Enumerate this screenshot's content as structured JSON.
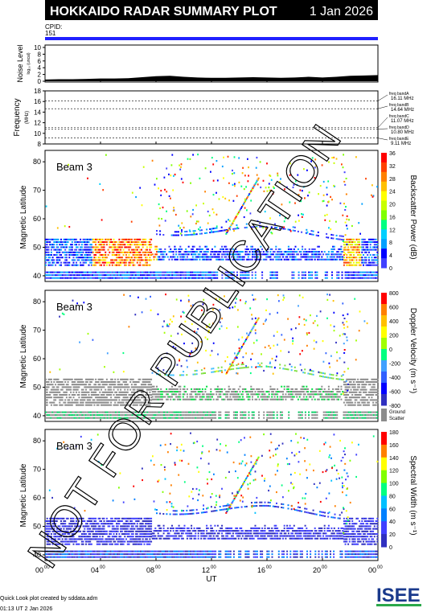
{
  "header": {
    "title": "HOKKAIDO RADAR SUMMARY PLOT",
    "date": "1 Jan 2026",
    "cpid_label": "CPID:",
    "cpid_value": "151"
  },
  "chart_data": [
    {
      "type": "area",
      "ylabel": "Noise Level",
      "ylabel_sub": "log₁₀ (uncal)",
      "yticks": [
        "10",
        "8",
        "6",
        "4",
        "2",
        "0"
      ],
      "ylim": [
        0,
        10
      ],
      "x": [
        0,
        1,
        2,
        3,
        4,
        5,
        6,
        7,
        8,
        9,
        10,
        11,
        12,
        13,
        14,
        15,
        16,
        17,
        18,
        19,
        20,
        21,
        22,
        23,
        24
      ],
      "values": [
        0.5,
        0.6,
        0.6,
        0.7,
        0.8,
        0.8,
        0.9,
        1.2,
        1.5,
        1.6,
        1.3,
        1.1,
        1.0,
        1.0,
        1.1,
        1.2,
        1.1,
        1.0,
        1.1,
        1.3,
        1.1,
        1.3,
        1.6,
        1.7,
        1.8
      ]
    },
    {
      "type": "line",
      "ylabel": "Frequency",
      "ylabel_sub": "(MHz)",
      "yticks": [
        "18",
        "16",
        "14",
        "12",
        "10",
        "8"
      ],
      "ylim": [
        8,
        18
      ],
      "bands": [
        {
          "name": "freq bandA",
          "value": "16.11 MHz",
          "mhz": 16.11
        },
        {
          "name": "freq bandB",
          "value": "14.64 MHz",
          "mhz": 14.64
        },
        {
          "name": "freq bandC",
          "value": "11.07 MHz",
          "mhz": 11.07
        },
        {
          "name": "freq bandD",
          "value": "10.80 MHz",
          "mhz": 10.8
        },
        {
          "name": "freq bandE",
          "value": "9.11 MHz",
          "mhz": 9.11
        }
      ]
    },
    {
      "type": "heatmap",
      "beam": "Beam  3",
      "ylabel": "Magnetic Latitude",
      "yticks": [
        "80",
        "70",
        "60",
        "50",
        "40"
      ],
      "ylim": [
        38,
        84
      ],
      "colorbar": {
        "title": "Backscatter Power (dB)",
        "ticks": [
          "36",
          "32",
          "28",
          "24",
          "20",
          "16",
          "12",
          "8",
          "4",
          "0"
        ]
      }
    },
    {
      "type": "heatmap",
      "beam": "Beam  3",
      "ylabel": "Magnetic Latitude",
      "yticks": [
        "80",
        "70",
        "60",
        "50",
        "40"
      ],
      "ylim": [
        38,
        84
      ],
      "colorbar": {
        "title": "Doppler Velocity (m s⁻¹)",
        "ticks": [
          "800",
          "600",
          "400",
          "200",
          "0",
          "-200",
          "-400",
          "-600",
          "-800"
        ]
      },
      "ground_scatter_label": [
        "Ground",
        "Scatter"
      ]
    },
    {
      "type": "heatmap",
      "beam": "Beam  3",
      "ylabel": "Magnetic Latitude",
      "yticks": [
        "80",
        "70",
        "60",
        "50",
        "40"
      ],
      "ylim": [
        38,
        84
      ],
      "colorbar": {
        "title": "Spectral Width (m s⁻¹)",
        "ticks": [
          "180",
          "160",
          "140",
          "120",
          "100",
          "80",
          "60",
          "40",
          "20",
          "0"
        ]
      }
    }
  ],
  "xaxis": {
    "label": "UT",
    "ticks": [
      {
        "h": "00",
        "m": "00"
      },
      {
        "h": "04",
        "m": "00"
      },
      {
        "h": "08",
        "m": "00"
      },
      {
        "h": "12",
        "m": "00"
      },
      {
        "h": "16",
        "m": "00"
      },
      {
        "h": "20",
        "m": "00"
      },
      {
        "h": "00",
        "m": "00"
      }
    ]
  },
  "footer": {
    "credit": "Quick Look plot created by sddata.adm",
    "timestamp": "01:13 UT 2 Jan 2026",
    "logo": "ISEE"
  },
  "watermark": "NOT FOR PUBLICATION",
  "colors": {
    "band_blue": "#2020ff",
    "ground_scatter": "#8c8c8c"
  }
}
